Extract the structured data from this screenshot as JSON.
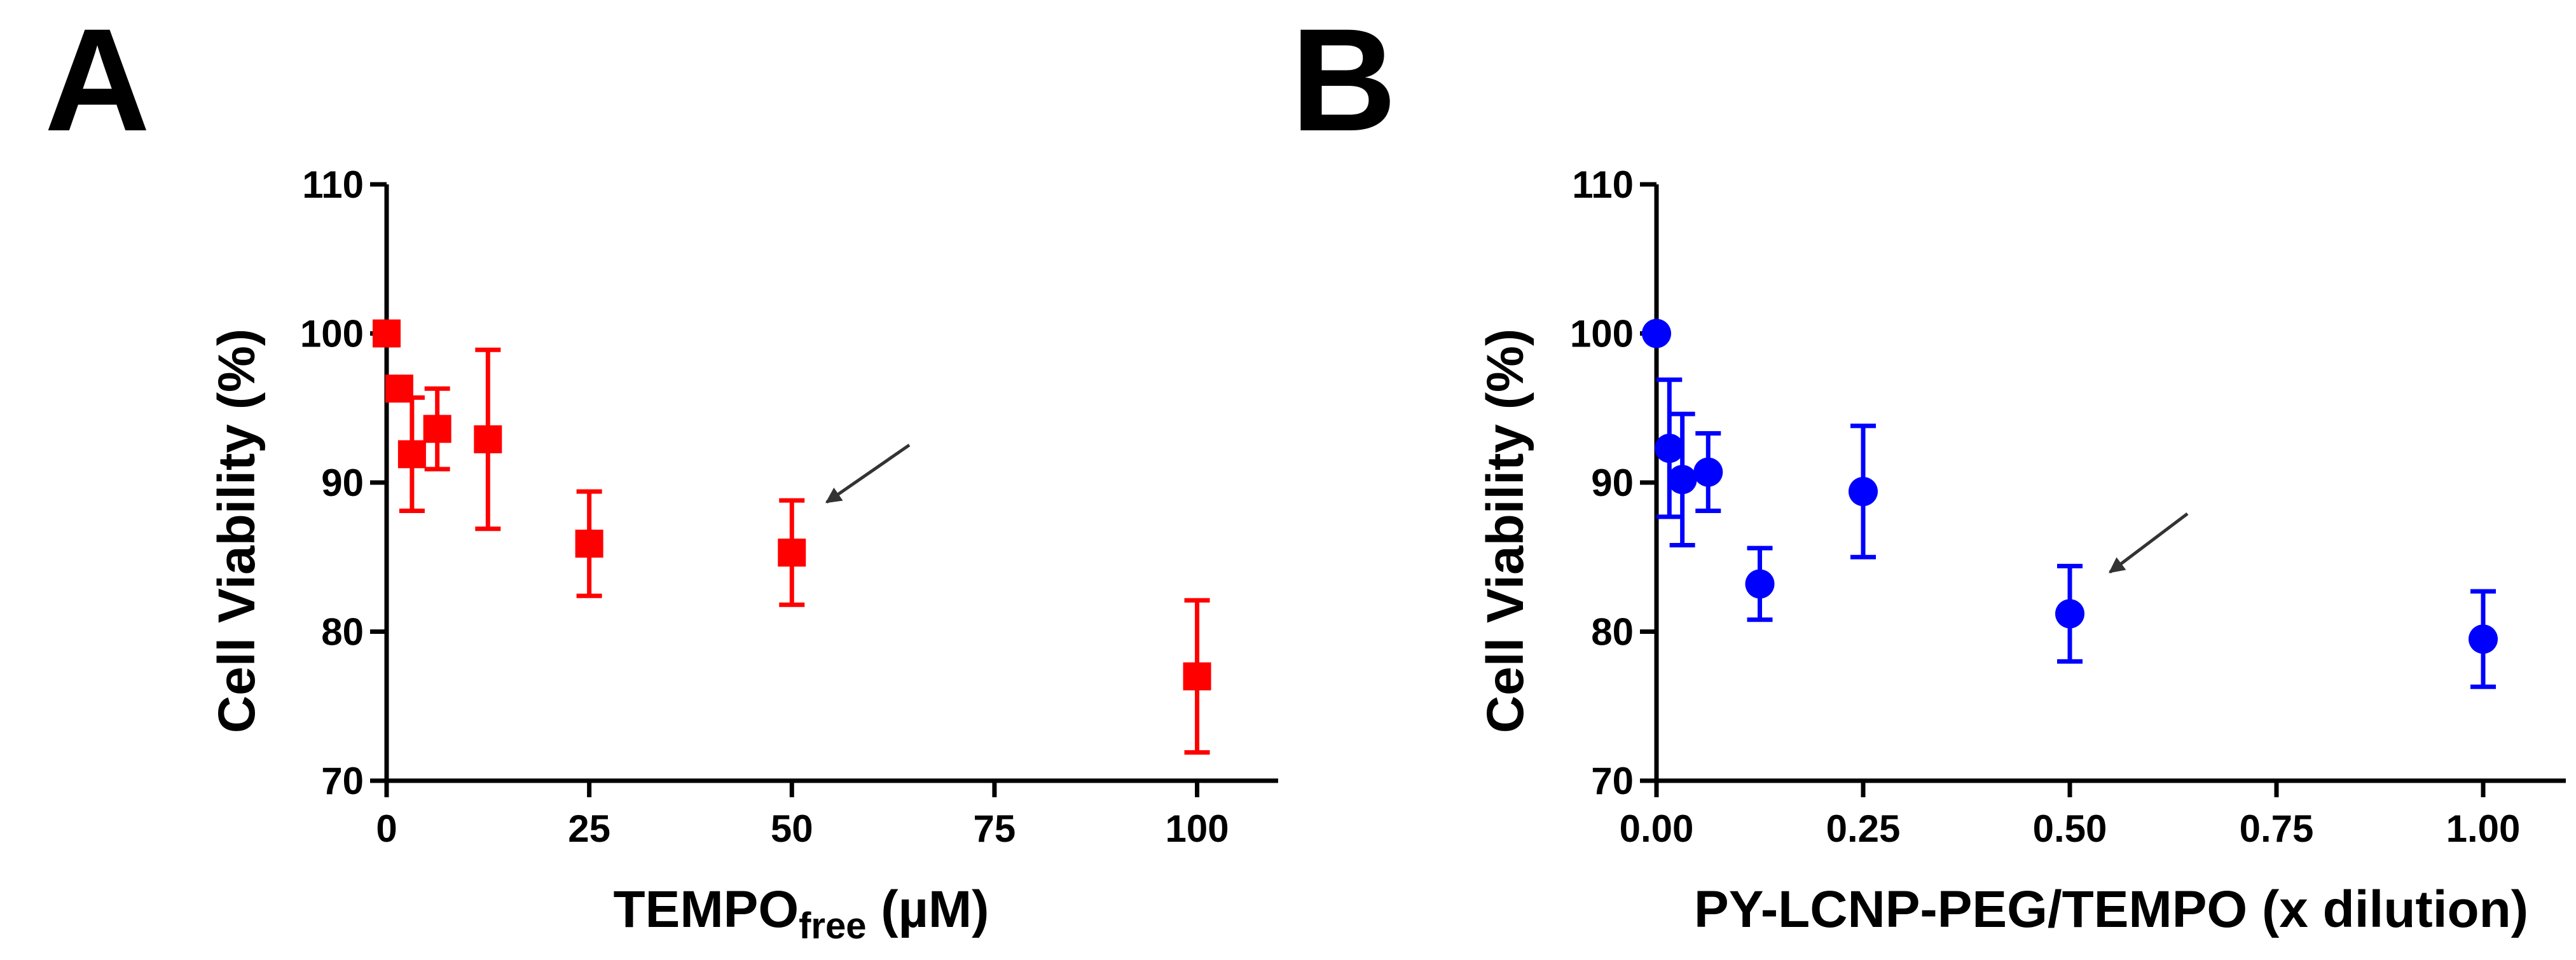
{
  "chart_data": [
    {
      "panel_label": "A",
      "type": "scatter",
      "marker": "square",
      "color": "#ff0000",
      "xlabel": "TEMPO",
      "xlabel_subscript": "free",
      "xlabel_unit": " (µM)",
      "ylabel": "Cell Viability (%)",
      "xlim": [
        0,
        110
      ],
      "ylim": [
        70,
        110
      ],
      "xticks": [
        0,
        25,
        50,
        75,
        100
      ],
      "yticks": [
        70,
        80,
        90,
        100,
        110
      ],
      "xtick_labels": [
        "0",
        "25",
        "50",
        "75",
        "100"
      ],
      "ytick_labels": [
        "70",
        "80",
        "90",
        "100",
        "110"
      ],
      "points": [
        {
          "x": 0,
          "y": 100,
          "err": 0
        },
        {
          "x": 1.56,
          "y": 96.3,
          "err": 0
        },
        {
          "x": 3.13,
          "y": 91.9,
          "err": 3.8
        },
        {
          "x": 6.25,
          "y": 93.6,
          "err": 2.7
        },
        {
          "x": 12.5,
          "y": 92.9,
          "err": 6.0
        },
        {
          "x": 25,
          "y": 85.9,
          "err": 3.5
        },
        {
          "x": 50,
          "y": 85.3,
          "err": 3.5
        },
        {
          "x": 100,
          "y": 77.0,
          "err": 5.1
        }
      ],
      "annotation": {
        "type": "arrow",
        "points_to": {
          "x": 50,
          "y": 85.3
        }
      }
    },
    {
      "panel_label": "B",
      "type": "scatter",
      "marker": "circle",
      "color": "#0000ff",
      "xlabel": "PY-LCNP-PEG/TEMPO (x dilution)",
      "ylabel": "Cell Viability (%)",
      "xlim": [
        0,
        1.1
      ],
      "ylim": [
        70,
        110
      ],
      "xticks": [
        0,
        0.25,
        0.5,
        0.75,
        1.0
      ],
      "yticks": [
        70,
        80,
        90,
        100,
        110
      ],
      "xtick_labels": [
        "0.00",
        "0.25",
        "0.50",
        "0.75",
        "1.00"
      ],
      "ytick_labels": [
        "70",
        "80",
        "90",
        "100",
        "110"
      ],
      "points": [
        {
          "x": 0,
          "y": 100,
          "err": 0
        },
        {
          "x": 0.0156,
          "y": 92.3,
          "err": 4.6
        },
        {
          "x": 0.03125,
          "y": 90.2,
          "err": 4.4
        },
        {
          "x": 0.0625,
          "y": 90.7,
          "err": 2.6
        },
        {
          "x": 0.125,
          "y": 83.2,
          "err": 2.4
        },
        {
          "x": 0.25,
          "y": 89.4,
          "err": 4.4
        },
        {
          "x": 0.5,
          "y": 81.2,
          "err": 3.2
        },
        {
          "x": 1.0,
          "y": 79.5,
          "err": 3.2
        }
      ],
      "annotation": {
        "type": "arrow",
        "points_to": {
          "x": 0.5,
          "y": 81.2
        }
      }
    }
  ]
}
